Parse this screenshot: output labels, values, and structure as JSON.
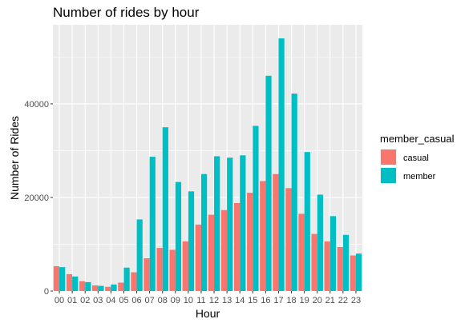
{
  "chart_data": {
    "type": "bar",
    "title": "Number of rides by hour",
    "xlabel": "Hour",
    "ylabel": "Number of Rides",
    "categories": [
      "00",
      "01",
      "02",
      "03",
      "04",
      "05",
      "06",
      "07",
      "08",
      "09",
      "10",
      "11",
      "12",
      "13",
      "14",
      "15",
      "16",
      "17",
      "18",
      "19",
      "20",
      "21",
      "22",
      "23"
    ],
    "series": [
      {
        "name": "casual",
        "color": "#F8766D",
        "values": [
          5300,
          3600,
          2100,
          1200,
          900,
          1800,
          4000,
          7000,
          9200,
          8800,
          10600,
          14200,
          16300,
          17300,
          18800,
          21000,
          23500,
          25000,
          22000,
          16500,
          12200,
          10600,
          9400,
          7600
        ]
      },
      {
        "name": "member",
        "color": "#00BFC4",
        "values": [
          5100,
          3100,
          1900,
          1100,
          1400,
          5000,
          15300,
          28700,
          35000,
          23300,
          21300,
          25000,
          28800,
          28500,
          29000,
          35300,
          46000,
          54000,
          42200,
          29700,
          20600,
          16000,
          12000,
          8000
        ]
      }
    ],
    "ylim": [
      0,
      56900
    ],
    "yticks": [
      0,
      20000,
      40000
    ],
    "ytick_labels": [
      "0",
      "20000",
      "40000"
    ],
    "grid": true,
    "legend": {
      "title": "member_casual",
      "placement": "right"
    }
  }
}
